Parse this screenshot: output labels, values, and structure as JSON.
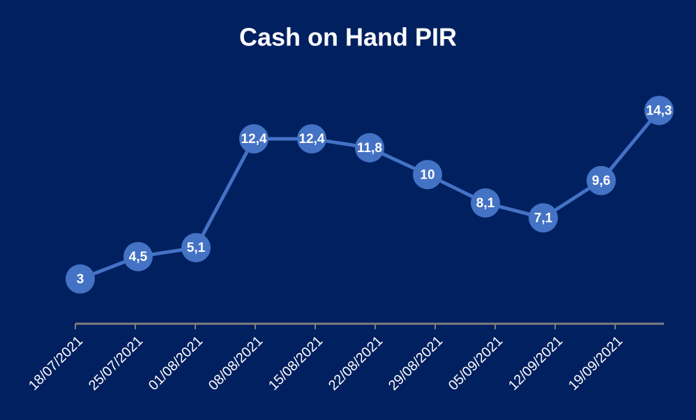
{
  "chart_data": {
    "type": "line",
    "title": "Cash on Hand PIR",
    "categories": [
      "18/07/2021",
      "25/07/2021",
      "01/08/2021",
      "08/08/2021",
      "15/08/2021",
      "22/08/2021",
      "29/08/2021",
      "05/09/2021",
      "12/09/2021",
      "19/09/2021",
      null
    ],
    "values": [
      3,
      4.5,
      5.1,
      12.4,
      12.4,
      11.8,
      10,
      8.1,
      7.1,
      9.6,
      14.3
    ],
    "value_labels": [
      "3",
      "4,5",
      "5,1",
      "12,4",
      "12,4",
      "11,8",
      "10",
      "8,1",
      "7,1",
      "9,6",
      "14,3"
    ],
    "color": "#4472c4",
    "ylim": [
      0,
      16
    ]
  }
}
